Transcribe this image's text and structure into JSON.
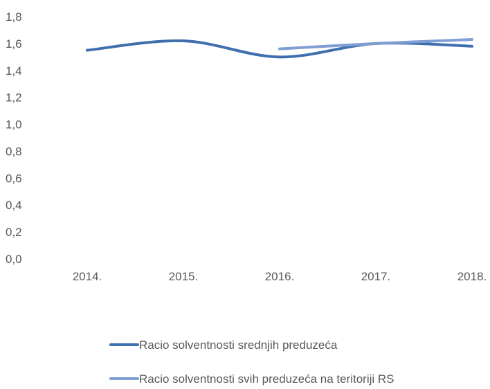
{
  "chart_data": {
    "type": "line",
    "categories": [
      "2014.",
      "2015.",
      "2016.",
      "2017.",
      "2018."
    ],
    "y_ticks": [
      "0,0",
      "0,2",
      "0,4",
      "0,6",
      "0,8",
      "1,0",
      "1,2",
      "1,4",
      "1,6",
      "1,8"
    ],
    "ylim": [
      0,
      1.8
    ],
    "grid": false,
    "legend_position": "bottom",
    "series": [
      {
        "name": "Racio solventnosti srednjih preduzeća",
        "color": "#3F6FAE",
        "values": [
          1.55,
          1.62,
          1.5,
          1.6,
          1.58
        ]
      },
      {
        "name": "Racio solventnosti svih preduzeća na teritoriji RS",
        "color": "#7F9ED3",
        "values": [
          null,
          null,
          1.56,
          1.6,
          1.63
        ]
      }
    ]
  }
}
